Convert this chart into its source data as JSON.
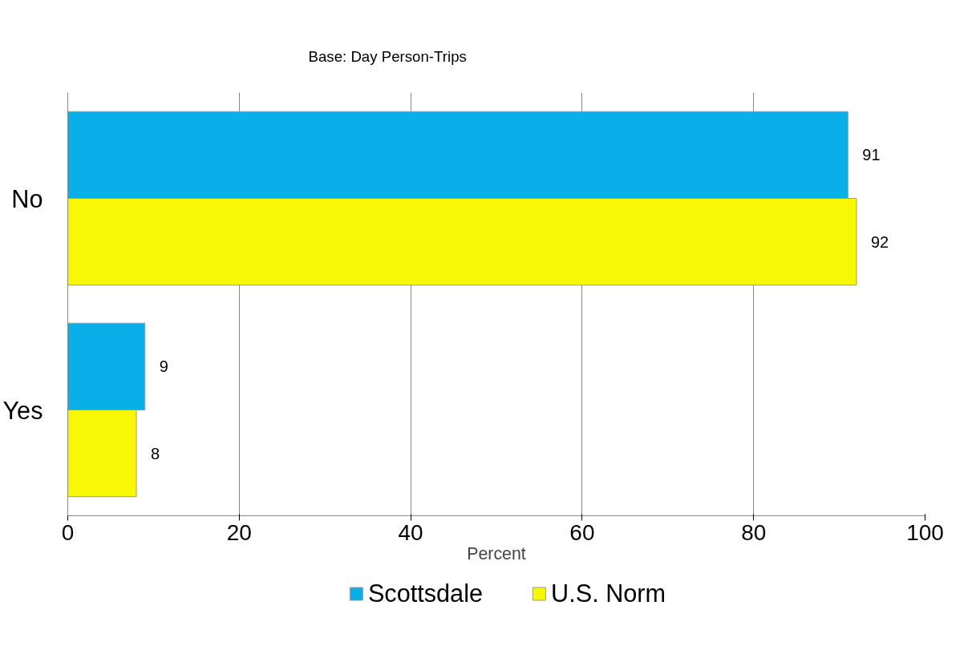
{
  "chart_data": {
    "type": "bar",
    "orientation": "horizontal",
    "subtitle": "Base: Day Person-Trips",
    "xlabel": "Percent",
    "categories": [
      "No",
      "Yes"
    ],
    "series": [
      {
        "name": "Scottsdale",
        "color": "#0aaee8",
        "values": [
          91,
          9
        ]
      },
      {
        "name": "U.S. Norm",
        "color": "#f7f706",
        "values": [
          92,
          8
        ]
      }
    ],
    "xlim": [
      0,
      100
    ],
    "xticks": [
      0,
      20,
      40,
      60,
      80,
      100
    ],
    "grid": "x",
    "legend": "bottom",
    "data_labels": true
  }
}
